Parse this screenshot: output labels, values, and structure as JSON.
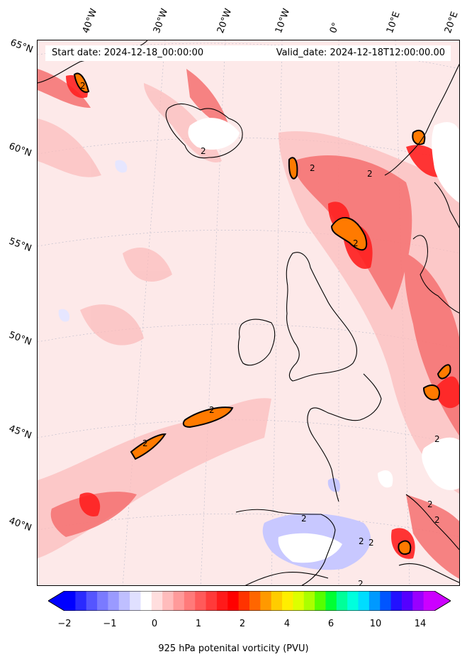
{
  "header": {
    "start_date": "Start date: 2024-12-18_00:00:00",
    "valid_date": "Valid_date: 2024-12-18T12:00:00.00"
  },
  "map": {
    "longitude_labels": [
      "40°W",
      "30°W",
      "20°W",
      "10°W",
      "0°",
      "10°E",
      "20°E"
    ],
    "latitude_labels": [
      "65°N",
      "60°N",
      "55°N",
      "50°N",
      "45°N",
      "40°N"
    ],
    "contour_label": "2",
    "colors": {
      "background": "#fde9e9",
      "light_red": "#fbbcbc",
      "medium_red": "#f57070",
      "strong_red": "#ff2020",
      "orange": "#ff7a00",
      "contour_line": "#000000",
      "negative": "#8080ff",
      "missing": "#ffffff"
    }
  },
  "colorbar": {
    "label": "925 hPa potenital vorticity (PVU)",
    "tick_labels": [
      "−2",
      "−1",
      "0",
      "1",
      "2",
      "4",
      "6",
      "10",
      "14"
    ],
    "colors": [
      "#0000ff",
      "#2a2aff",
      "#5555ff",
      "#7a7aff",
      "#9a9aff",
      "#bfbfff",
      "#e0e0ff",
      "#ffffff",
      "#ffdede",
      "#ffbcbc",
      "#ff9a9a",
      "#ff7a7a",
      "#ff5a5a",
      "#ff3a3a",
      "#ff1a1a",
      "#ff0000",
      "#ff3300",
      "#ff6600",
      "#ff9900",
      "#ffcc00",
      "#ffee00",
      "#ddff00",
      "#aaff00",
      "#55ff00",
      "#00ff33",
      "#00ff99",
      "#00ffdd",
      "#00ddff",
      "#0099ff",
      "#0055ff",
      "#2211ff",
      "#5500ff",
      "#9900ff",
      "#cc00ff"
    ],
    "under_color": "#0000ff",
    "over_color": "#cc00ff"
  }
}
